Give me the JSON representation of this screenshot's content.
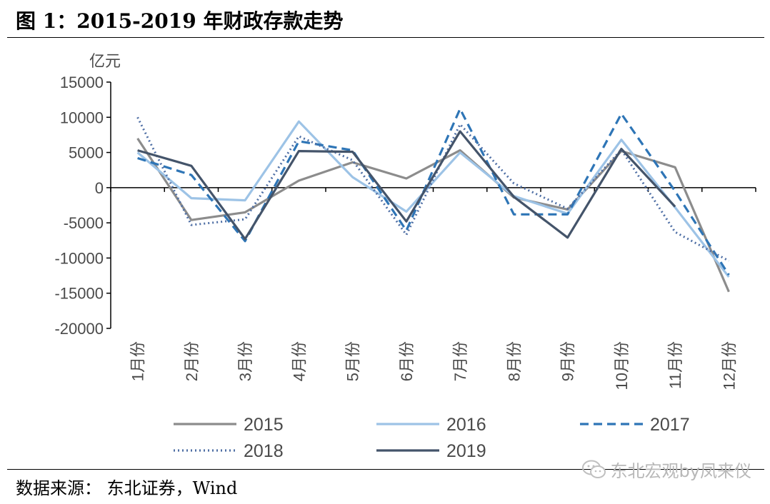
{
  "figure": {
    "title": "图  1：2015-2019 年财政存款走势",
    "source": "数据来源：  东北证券，Wind",
    "watermark": "东北宏观by凤来仪",
    "watermark_icon": "wechat-icon"
  },
  "chart_data": {
    "type": "line",
    "title": "",
    "xlabel": "",
    "ylabel": "亿元",
    "ylim": [
      -20000,
      15000
    ],
    "yticks": [
      15000,
      10000,
      5000,
      0,
      -5000,
      -10000,
      -15000,
      -20000
    ],
    "categories": [
      "1月份",
      "2月份",
      "3月份",
      "4月份",
      "5月份",
      "6月份",
      "7月份",
      "8月份",
      "9月份",
      "10月份",
      "11月份",
      "12月份"
    ],
    "grid": false,
    "legend": "bottom",
    "series": [
      {
        "name": "2015",
        "color": "#8c8c8c",
        "dash": "solid",
        "values": [
          7000,
          -4600,
          -3500,
          1000,
          3600,
          1300,
          5300,
          -1400,
          -3100,
          5200,
          2900,
          -14800
        ]
      },
      {
        "name": "2016",
        "color": "#9dc3e6",
        "dash": "solid",
        "values": [
          5000,
          -1500,
          -1800,
          9400,
          1500,
          -3400,
          5000,
          -1200,
          -3700,
          6800,
          -2800,
          -12700
        ]
      },
      {
        "name": "2017",
        "color": "#2e75b6",
        "dash": "dashed",
        "values": [
          4200,
          1800,
          -7600,
          6600,
          5300,
          -6100,
          11200,
          -3800,
          -3800,
          10500,
          -500,
          -12400
        ]
      },
      {
        "name": "2018",
        "color": "#4f6fa5",
        "dash": "dotted",
        "values": [
          10000,
          -5300,
          -4500,
          7300,
          3900,
          -6700,
          9000,
          600,
          -3000,
          5400,
          -6300,
          -10400
        ]
      },
      {
        "name": "2019",
        "color": "#44546a",
        "dash": "solid",
        "values": [
          5300,
          3100,
          -7300,
          5200,
          5100,
          -4800,
          8000,
          -1300,
          -7100,
          5500,
          -2700,
          null
        ]
      }
    ]
  }
}
